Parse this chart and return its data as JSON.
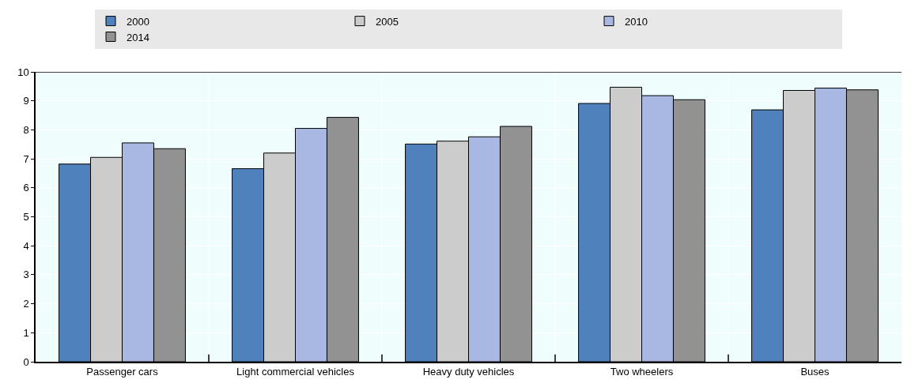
{
  "chart_data": {
    "type": "bar",
    "categories": [
      "Passenger cars",
      "Light commercial vehicles",
      "Heavy duty vehicles",
      "Two wheelers",
      "Buses"
    ],
    "series": [
      {
        "name": "2000",
        "color": "#4f81bd",
        "values": [
          6.82,
          6.66,
          7.51,
          8.91,
          8.69
        ]
      },
      {
        "name": "2005",
        "color": "#cccccc",
        "values": [
          7.05,
          7.2,
          7.61,
          9.47,
          9.36
        ]
      },
      {
        "name": "2010",
        "color": "#a8b8e2",
        "values": [
          7.55,
          8.05,
          7.76,
          9.18,
          9.44
        ]
      },
      {
        "name": "2014",
        "color": "#929292",
        "values": [
          7.35,
          8.43,
          8.12,
          9.04,
          9.38
        ]
      }
    ],
    "ylim": [
      0,
      10
    ],
    "yticks": [
      0,
      1,
      2,
      3,
      4,
      5,
      6,
      7,
      8,
      9,
      10
    ],
    "grid": true,
    "legend": "top"
  }
}
